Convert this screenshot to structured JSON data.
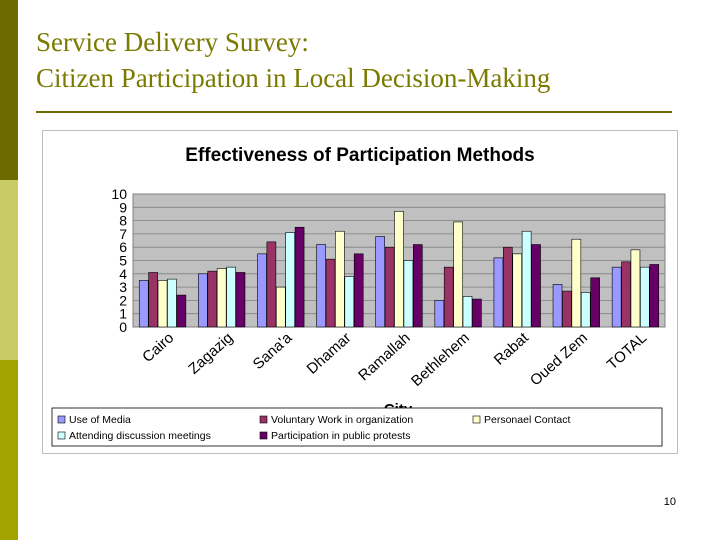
{
  "slide": {
    "title_line1": "Service Delivery Survey:",
    "title_line2": "Citizen Participation in Local Decision-Making",
    "page_number": "10"
  },
  "colors": {
    "sidebar_dark": "#6b6b00",
    "sidebar_light": "#c9cc66",
    "sidebar_mid": "#a3a300",
    "title_text": "#7a7a00",
    "plot_background": "#c0c0c0"
  },
  "chart_data": {
    "type": "bar",
    "title": "Effectiveness of Participation Methods",
    "xlabel": "City",
    "ylabel": "",
    "ylim": [
      0,
      10
    ],
    "yticks": [
      0,
      1,
      2,
      3,
      4,
      5,
      6,
      7,
      8,
      9,
      10
    ],
    "grid": true,
    "legend_position": "bottom",
    "categories": [
      "Cairo",
      "Zagazig",
      "Sana'a",
      "Dhamar",
      "Ramallah",
      "Bethlehem",
      "Rabat",
      "Oued Zem",
      "TOTAL"
    ],
    "series": [
      {
        "name": "Use of Media",
        "color": "#9999ff",
        "values": [
          3.5,
          4.0,
          5.5,
          6.2,
          6.8,
          2.0,
          5.2,
          3.2,
          4.5
        ]
      },
      {
        "name": "Voluntary Work in organization",
        "color": "#993366",
        "values": [
          4.1,
          4.2,
          6.4,
          5.1,
          6.0,
          4.5,
          6.0,
          2.7,
          4.9
        ]
      },
      {
        "name": "Personael Contact",
        "color": "#ffffcc",
        "values": [
          3.5,
          4.4,
          3.0,
          7.2,
          8.7,
          7.9,
          5.5,
          6.6,
          5.8
        ]
      },
      {
        "name": "Attending discussion meetings",
        "color": "#ccffff",
        "values": [
          3.6,
          4.5,
          7.1,
          3.8,
          5.0,
          2.3,
          7.2,
          2.6,
          4.5
        ]
      },
      {
        "name": "Participation in public protests",
        "color": "#660066",
        "values": [
          2.4,
          4.1,
          7.5,
          5.5,
          6.2,
          2.1,
          6.2,
          3.7,
          4.7
        ]
      }
    ]
  }
}
